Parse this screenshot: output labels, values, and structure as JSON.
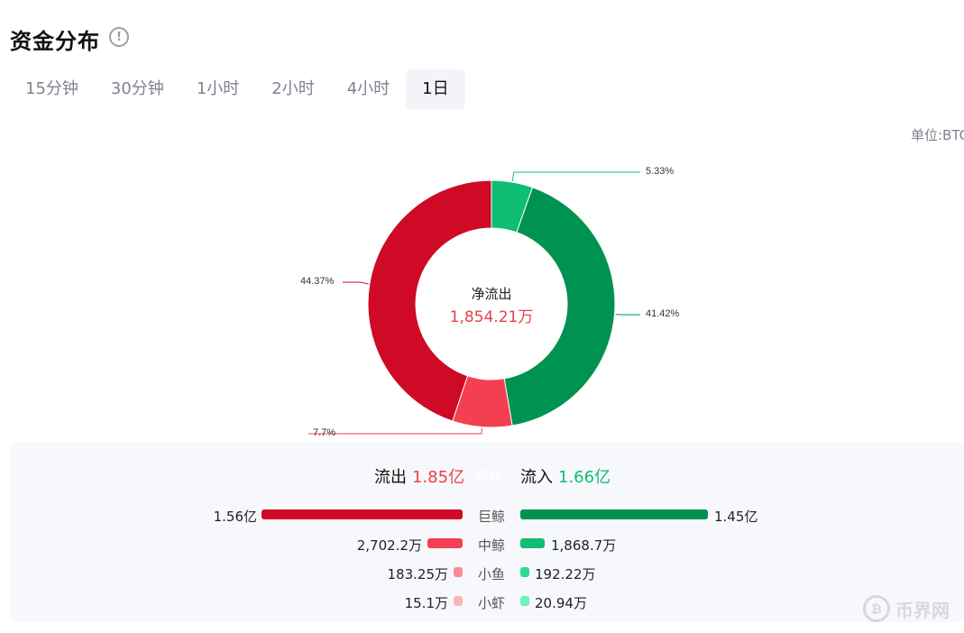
{
  "header": {
    "title": "资金分布",
    "info_icon": "info-circle-icon"
  },
  "tabs": [
    {
      "label": "15分钟",
      "active": false
    },
    {
      "label": "30分钟",
      "active": false
    },
    {
      "label": "1小时",
      "active": false
    },
    {
      "label": "2小时",
      "active": false
    },
    {
      "label": "4小时",
      "active": false
    },
    {
      "label": "1日",
      "active": true
    }
  ],
  "unit_label": "单位:BTC",
  "chart_data": {
    "type": "pie",
    "donut": true,
    "center_title": "净流出",
    "center_value": "1,854.21万",
    "slices": [
      {
        "label": "5.33%",
        "value": 5.33,
        "color": "#0ebe74"
      },
      {
        "label": "41.42%",
        "value": 41.42,
        "color": "#009250"
      },
      {
        "label": "7.7%",
        "value": 7.7,
        "color": "#f43f53"
      },
      {
        "label": "44.37%",
        "value": 44.37,
        "color": "#cf0a27"
      }
    ]
  },
  "summary": {
    "outflow_label": "流出",
    "outflow_value": "1.85亿",
    "hidden_label": "巨鲸",
    "inflow_label": "流入",
    "inflow_value": "1.66亿"
  },
  "rows": [
    {
      "label": "巨鲸",
      "out": "1.56亿",
      "in": "1.45亿",
      "out_color": "#cf0a27",
      "in_color": "#009250"
    },
    {
      "label": "中鲸",
      "out": "2,702.2万",
      "in": "1,868.7万",
      "out_color": "#f43f53",
      "in_color": "#0ebe74"
    },
    {
      "label": "小鱼",
      "out": "183.25万",
      "in": "192.22万",
      "out_color": "#fb8a96",
      "in_color": "#2fd995"
    },
    {
      "label": "小虾",
      "out": "15.1万",
      "in": "20.94万",
      "out_color": "#fbb4bb",
      "in_color": "#6ff0bd"
    }
  ],
  "watermark": {
    "text": "币界网",
    "logo": "bitcoin-icon"
  }
}
